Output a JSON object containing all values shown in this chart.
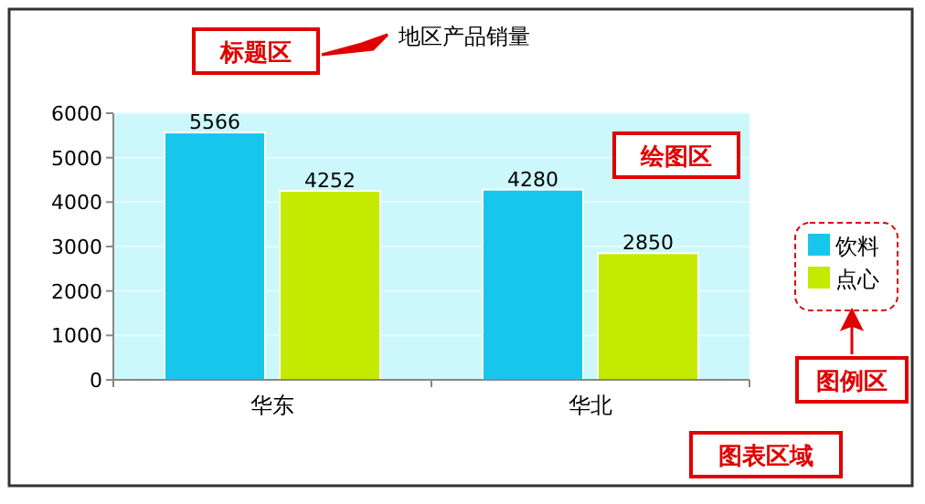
{
  "chart_data": {
    "type": "bar",
    "title": "地区产品销量",
    "categories": [
      "华东",
      "华北"
    ],
    "series": [
      {
        "name": "饮料",
        "color": "#17c6ec",
        "values": [
          5566,
          4280
        ]
      },
      {
        "name": "点心",
        "color": "#c4ea00",
        "values": [
          4252,
          2850
        ]
      }
    ],
    "ylim": [
      0,
      6000
    ],
    "yticks": [
      0,
      1000,
      2000,
      3000,
      4000,
      5000,
      6000
    ],
    "grid": "y",
    "legend": "right",
    "data_labels": true,
    "annotations": [
      "标题区",
      "绘图区",
      "图例区",
      "图表区域"
    ]
  }
}
